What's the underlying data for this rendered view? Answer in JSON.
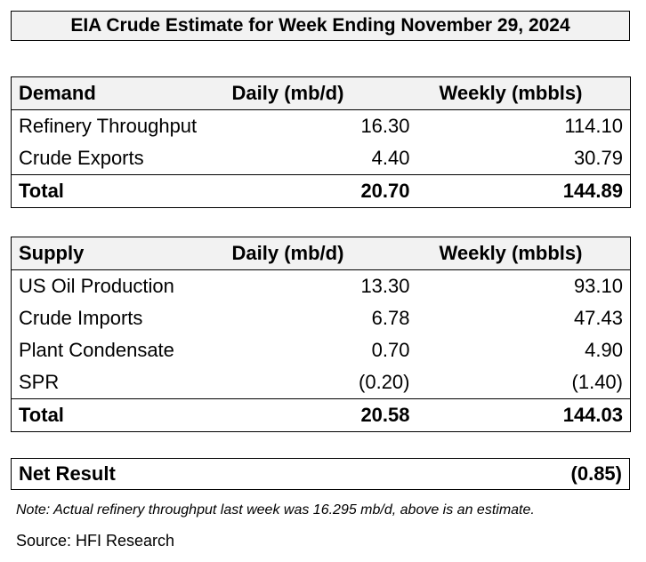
{
  "title": "EIA Crude Estimate for Week Ending November 29, 2024",
  "demand": {
    "header": [
      "Demand",
      "Daily (mb/d)",
      "Weekly (mbbls)"
    ],
    "rows": [
      [
        "Refinery Throughput",
        "16.30",
        "114.10"
      ],
      [
        "Crude Exports",
        "4.40",
        "30.79"
      ]
    ],
    "total": [
      "Total",
      "20.70",
      "144.89"
    ]
  },
  "supply": {
    "header": [
      "Supply",
      "Daily (mb/d)",
      "Weekly (mbbls)"
    ],
    "rows": [
      [
        "US Oil Production",
        "13.30",
        "93.10"
      ],
      [
        "Crude Imports",
        "6.78",
        "47.43"
      ],
      [
        "Plant Condensate",
        "0.70",
        "4.90"
      ],
      [
        "SPR",
        "(0.20)",
        "(1.40)"
      ]
    ],
    "total": [
      "Total",
      "20.58",
      "144.03"
    ]
  },
  "net_result": {
    "label": "Net Result",
    "value": "(0.85)"
  },
  "note": "Note: Actual refinery throughput last week was 16.295 mb/d, above is an estimate.",
  "source": "Source: HFI Research"
}
